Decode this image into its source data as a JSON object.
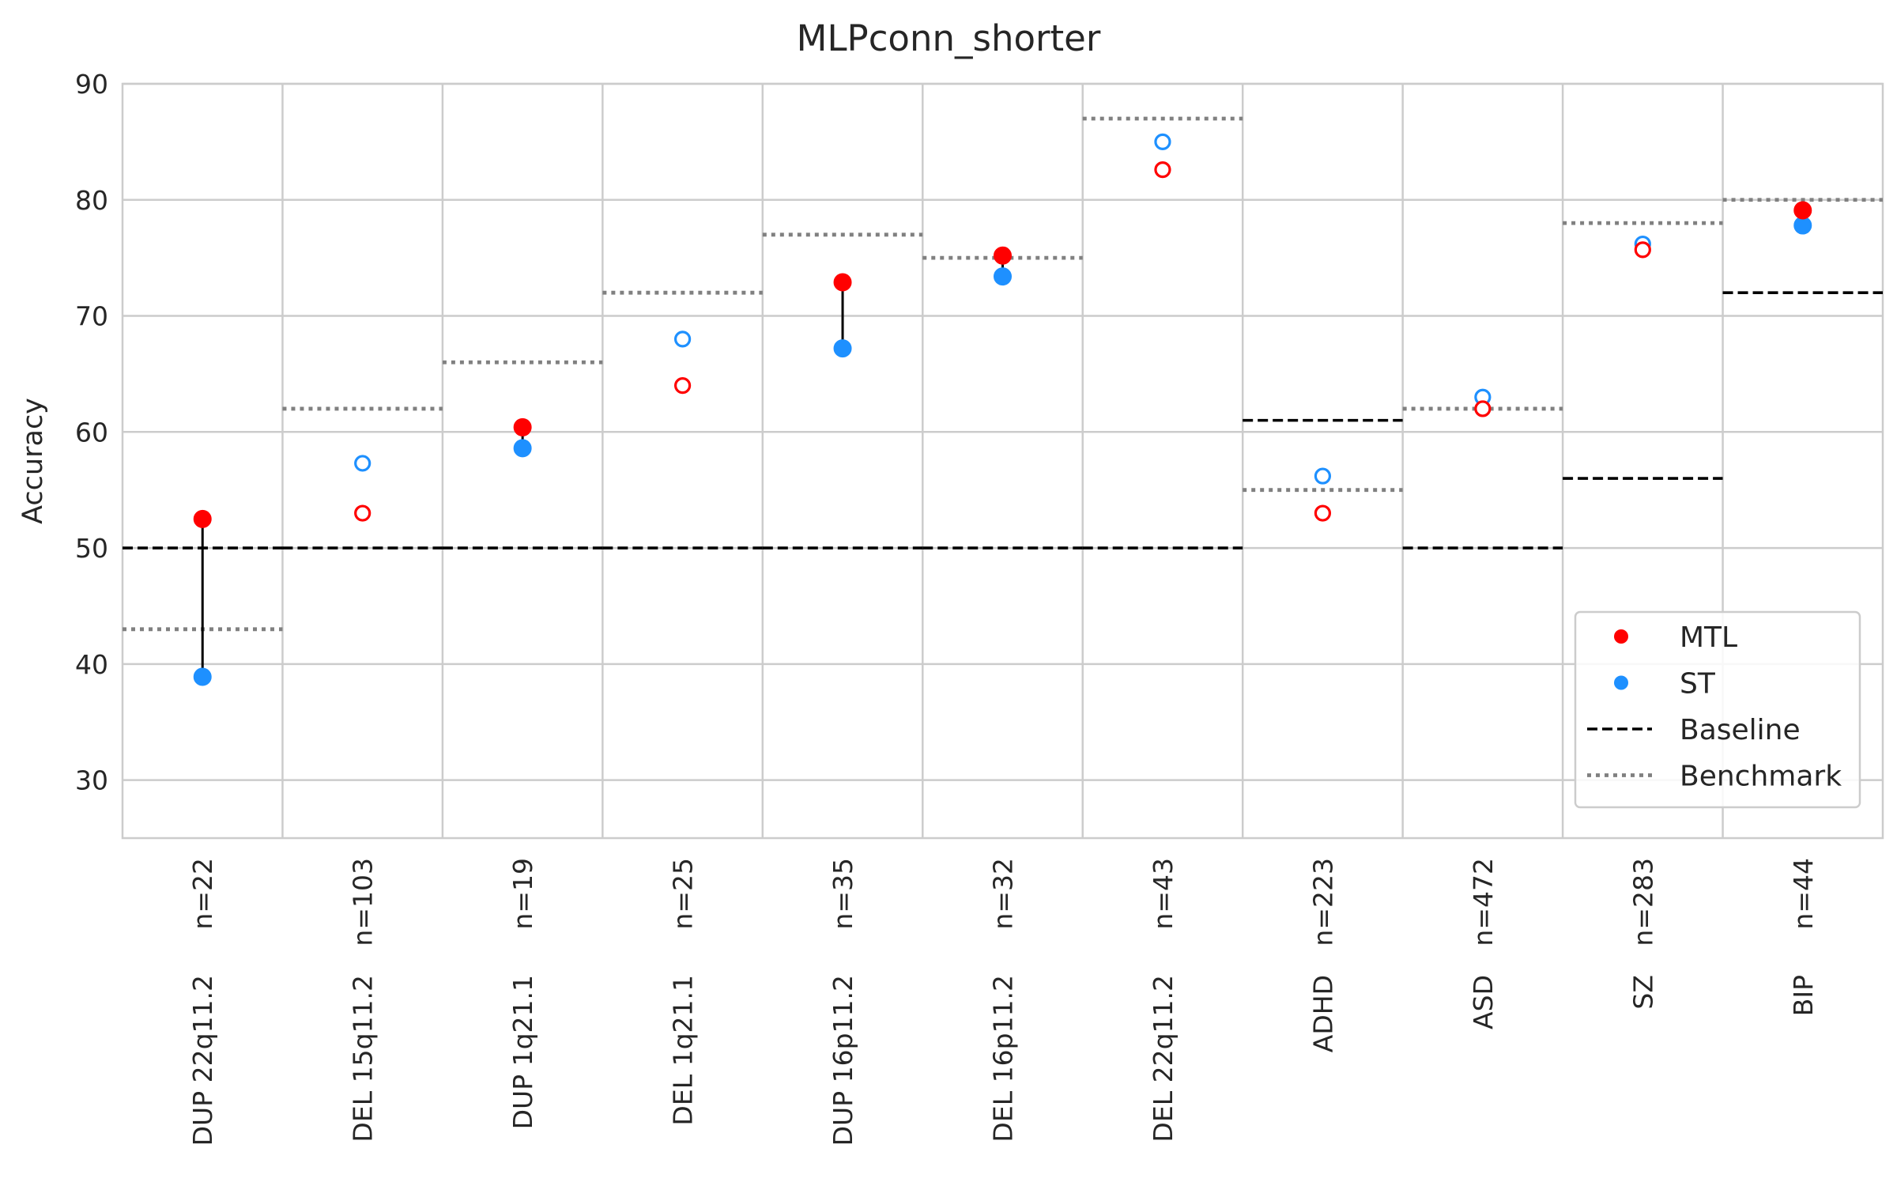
{
  "chart_data": {
    "type": "scatter",
    "title": "MLPconn_shorter",
    "ylabel": "Accuracy",
    "ylim": [
      25,
      90
    ],
    "yticks": [
      30,
      40,
      50,
      60,
      70,
      80,
      90
    ],
    "grid": true,
    "legend_position": "lower-right",
    "colors": {
      "mtl": "#ff0000",
      "st": "#1e90ff",
      "baseline": "#000000",
      "benchmark": "#808080",
      "grid": "#cccccc",
      "connector": "#000000"
    },
    "categories": [
      {
        "label": "DUP 22q11.2",
        "n": "n=22",
        "mtl": 52.5,
        "st": 38.9,
        "significant": true,
        "baseline": 50,
        "benchmark": 43
      },
      {
        "label": "DEL 15q11.2",
        "n": "n=103",
        "mtl": 53.0,
        "st": 57.3,
        "significant": false,
        "baseline": 50,
        "benchmark": 62
      },
      {
        "label": "DUP 1q21.1",
        "n": "n=19",
        "mtl": 60.4,
        "st": 58.6,
        "significant": true,
        "baseline": 50,
        "benchmark": 66
      },
      {
        "label": "DEL 1q21.1",
        "n": "n=25",
        "mtl": 64.0,
        "st": 68.0,
        "significant": false,
        "baseline": 50,
        "benchmark": 72
      },
      {
        "label": "DUP 16p11.2",
        "n": "n=35",
        "mtl": 72.9,
        "st": 67.2,
        "significant": true,
        "baseline": 50,
        "benchmark": 77
      },
      {
        "label": "DEL 16p11.2",
        "n": "n=32",
        "mtl": 75.2,
        "st": 73.4,
        "significant": true,
        "baseline": 50,
        "benchmark": 75
      },
      {
        "label": "DEL 22q11.2",
        "n": "n=43",
        "mtl": 82.6,
        "st": 85.0,
        "significant": false,
        "baseline": 50,
        "benchmark": 87
      },
      {
        "label": "ADHD",
        "n": "n=223",
        "mtl": 53.0,
        "st": 56.2,
        "significant": false,
        "baseline": 61,
        "benchmark": 55
      },
      {
        "label": "ASD",
        "n": "n=472",
        "mtl": 62.0,
        "st": 63.0,
        "significant": false,
        "baseline": 50,
        "benchmark": 62
      },
      {
        "label": "SZ",
        "n": "n=283",
        "mtl": 75.7,
        "st": 76.2,
        "significant": false,
        "baseline": 56,
        "benchmark": 78
      },
      {
        "label": "BIP",
        "n": "n=44",
        "mtl": 79.1,
        "st": 77.8,
        "significant": true,
        "baseline": 72,
        "benchmark": 80
      }
    ],
    "legend": [
      {
        "key": "mtl",
        "label": "MTL",
        "marker": "dot"
      },
      {
        "key": "st",
        "label": "ST",
        "marker": "dot"
      },
      {
        "key": "baseline",
        "label": "Baseline",
        "marker": "dashed"
      },
      {
        "key": "benchmark",
        "label": "Benchmark",
        "marker": "dotted"
      }
    ]
  }
}
